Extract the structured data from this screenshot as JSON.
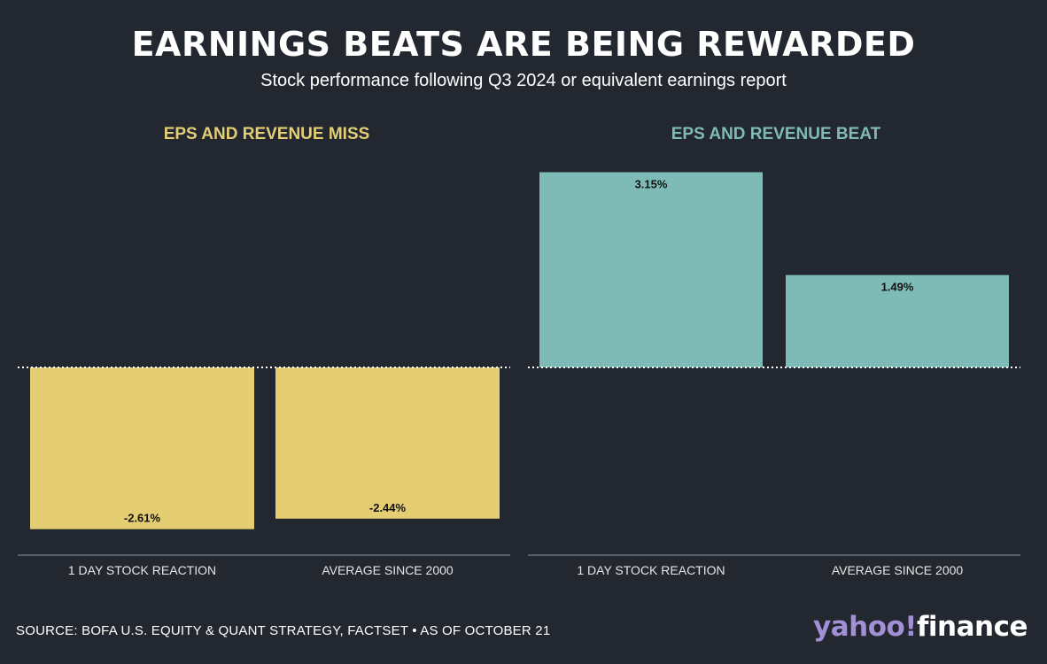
{
  "title": "EARNINGS BEATS ARE BEING REWARDED",
  "subtitle": "Stock performance following Q3 2024 or equivalent earnings report",
  "source": "SOURCE: BOFA U.S. EQUITY & QUANT STRATEGY, FACTSET • AS OF OCTOBER 21",
  "logo": {
    "brand": "yahoo",
    "bang": "!",
    "product": "finance"
  },
  "colors": {
    "background": "#23272f",
    "miss": "#e4cd73",
    "beat": "#7fbbb6",
    "text": "#ffffff"
  },
  "chart_data": [
    {
      "type": "bar",
      "title": "EPS AND REVENUE MISS",
      "categories": [
        "1 DAY STOCK REACTION",
        "AVERAGE SINCE 2000"
      ],
      "values": [
        -2.61,
        -2.44
      ],
      "labels": [
        "-2.61%",
        "-2.44%"
      ],
      "ylim": [
        -3.2,
        3.2
      ],
      "zero_line": "dotted",
      "color": "#e4cd73"
    },
    {
      "type": "bar",
      "title": "EPS AND REVENUE BEAT",
      "categories": [
        "1 DAY STOCK REACTION",
        "AVERAGE SINCE 2000"
      ],
      "values": [
        3.15,
        1.49
      ],
      "labels": [
        "3.15%",
        "1.49%"
      ],
      "ylim": [
        -3.2,
        3.2
      ],
      "zero_line": "dotted",
      "color": "#7fbbb6"
    }
  ]
}
